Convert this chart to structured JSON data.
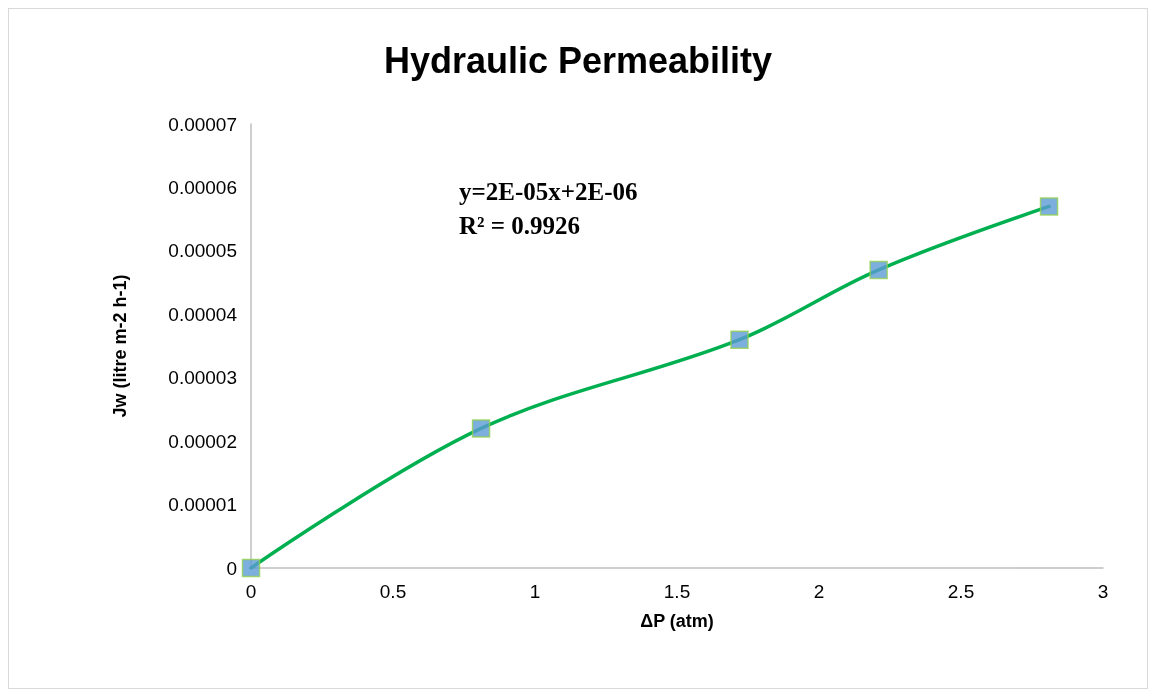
{
  "chart_data": {
    "type": "line",
    "title": "Hydraulic Permeability",
    "xlabel": "ΔP (atm)",
    "ylabel": "Jw (litre m-2 h-1)",
    "series": [
      {
        "color": "#00b050",
        "marker": "none",
        "x": [
          0,
          0.81,
          1.72,
          2.21,
          2.81
        ],
        "values": [
          0,
          2.2e-05,
          3.6e-05,
          4.7e-05,
          5.7e-05
        ]
      },
      {
        "type": "scatter",
        "color": "#5b9bd5",
        "marker": "square",
        "x": [
          0,
          0.81,
          1.72,
          2.21,
          2.81
        ],
        "values": [
          0,
          2.2e-05,
          3.6e-05,
          4.7e-05,
          5.7e-05
        ]
      }
    ],
    "xlim": [
      0,
      3
    ],
    "xticks": [
      0,
      0.5,
      1,
      1.5,
      2,
      2.5,
      3
    ],
    "ylim": [
      0,
      7e-05
    ],
    "yticks": [
      0,
      {
        "value": 1e-05,
        "label": "0.00001"
      },
      {
        "value": 2e-05,
        "label": "0.00002"
      },
      {
        "value": 3e-05,
        "label": "0.00003"
      },
      {
        "value": 4e-05,
        "label": "0.00004"
      },
      {
        "value": 5e-05,
        "label": "0.00005"
      },
      {
        "value": 6e-05,
        "label": "0.00006"
      },
      {
        "value": 7e-05,
        "label": "0.00007"
      }
    ],
    "grid": false,
    "annotations": [
      "y=2E-05x+2E-06",
      "R² = 0.9926"
    ]
  }
}
